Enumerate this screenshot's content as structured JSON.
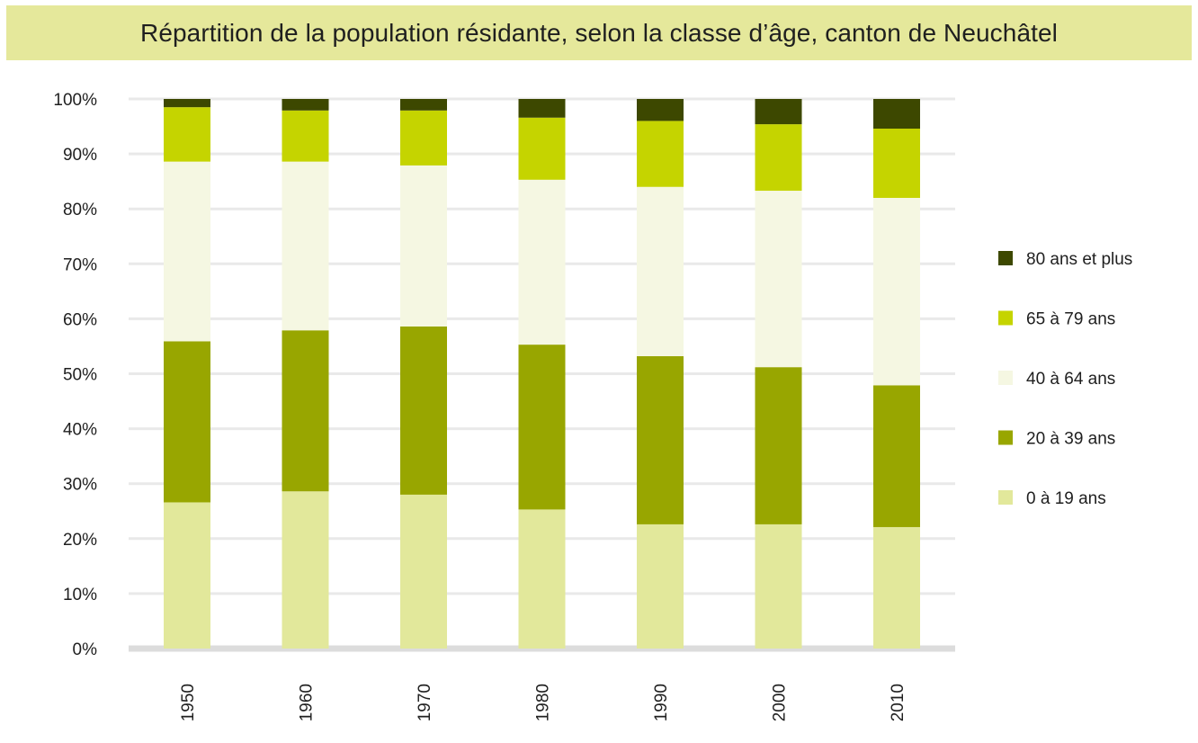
{
  "chart_data": {
    "type": "bar",
    "stacked": true,
    "percent": true,
    "title": "Répartition de la population résidante, selon la classe d’âge, canton de Neuchâtel",
    "categories": [
      "1950",
      "1960",
      "1970",
      "1980",
      "1990",
      "2000",
      "2010"
    ],
    "y_ticks": [
      "0%",
      "10%",
      "20%",
      "30%",
      "40%",
      "50%",
      "60%",
      "70%",
      "80%",
      "90%",
      "100%"
    ],
    "ylim": [
      0,
      100
    ],
    "grid": true,
    "legend_position": "right",
    "series": [
      {
        "name": "0 à 19 ans",
        "color": "#e2e89b",
        "values": [
          26.6,
          28.6,
          28.0,
          25.3,
          22.6,
          22.6,
          22.1
        ]
      },
      {
        "name": "20 à 39 ans",
        "color": "#98a600",
        "values": [
          29.3,
          29.3,
          30.6,
          30.0,
          30.6,
          28.6,
          25.8
        ]
      },
      {
        "name": "40 à 64 ans",
        "color": "#f5f7e2",
        "values": [
          32.7,
          30.7,
          29.3,
          30.0,
          30.8,
          32.1,
          34.1
        ]
      },
      {
        "name": "65 à 79 ans",
        "color": "#c5d400",
        "values": [
          9.9,
          9.3,
          10.0,
          11.3,
          12.0,
          12.1,
          12.6
        ]
      },
      {
        "name": "80 ans et plus",
        "color": "#3d4800",
        "values": [
          1.5,
          2.1,
          2.1,
          3.4,
          4.0,
          4.6,
          5.4
        ]
      }
    ]
  }
}
